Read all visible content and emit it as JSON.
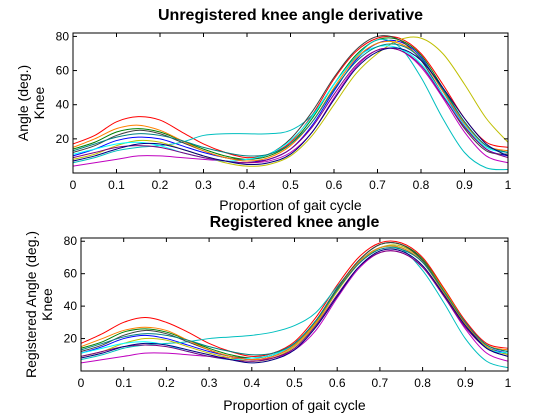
{
  "chart_data": [
    {
      "type": "line",
      "title": "Unregistered knee angle derivative",
      "xlabel": "Proportion of gait cycle",
      "ylabel_lines": [
        "Angle (deg.)",
        "Knee"
      ],
      "xlim": [
        0,
        1
      ],
      "ylim": [
        0,
        82
      ],
      "xticks": [
        0,
        0.1,
        0.2,
        0.3,
        0.4,
        0.5,
        0.6,
        0.7,
        0.8,
        0.9,
        1
      ],
      "xtick_labels": [
        "0",
        "0.1",
        "0.2",
        "0.3",
        "0.4",
        "0.5",
        "0.6",
        "0.7",
        "0.8",
        "0.9",
        "1"
      ],
      "yticks": [
        20,
        40,
        60,
        80
      ],
      "ytick_labels": [
        "20",
        "40",
        "60",
        "80"
      ],
      "grid": false,
      "legend": "none",
      "x": [
        0,
        0.05,
        0.1,
        0.15,
        0.2,
        0.25,
        0.3,
        0.35,
        0.4,
        0.45,
        0.5,
        0.55,
        0.6,
        0.65,
        0.7,
        0.75,
        0.8,
        0.85,
        0.9,
        0.95,
        1
      ],
      "series": [
        {
          "color": "#0000ff",
          "values": [
            10,
            14,
            19,
            21,
            20,
            16,
            12,
            9,
            7,
            8,
            14,
            28,
            48,
            66,
            76,
            77,
            68,
            48,
            28,
            14,
            10
          ]
        },
        {
          "color": "#008000",
          "values": [
            14,
            18,
            24,
            26,
            24,
            19,
            14,
            10,
            8,
            10,
            17,
            32,
            52,
            69,
            78,
            78,
            69,
            50,
            30,
            16,
            12
          ]
        },
        {
          "color": "#ff0000",
          "values": [
            17,
            22,
            30,
            33,
            31,
            24,
            17,
            12,
            9,
            11,
            18,
            34,
            55,
            71,
            79,
            79,
            70,
            52,
            32,
            18,
            15
          ]
        },
        {
          "color": "#00bfbf",
          "values": [
            6,
            9,
            13,
            15,
            16,
            18,
            22,
            23,
            23,
            23,
            25,
            34,
            52,
            68,
            78,
            74,
            56,
            32,
            12,
            3,
            2
          ]
        },
        {
          "color": "#bf00bf",
          "values": [
            4,
            6,
            8,
            10,
            10,
            9,
            8,
            7,
            6,
            7,
            12,
            24,
            44,
            62,
            72,
            72,
            62,
            44,
            24,
            10,
            6
          ]
        },
        {
          "color": "#bfbf00",
          "values": [
            8,
            11,
            16,
            19,
            18,
            14,
            10,
            6,
            4,
            5,
            10,
            22,
            40,
            58,
            70,
            78,
            79,
            70,
            52,
            32,
            18
          ]
        },
        {
          "color": "#404040",
          "values": [
            12,
            16,
            22,
            25,
            23,
            18,
            13,
            9,
            8,
            11,
            20,
            36,
            56,
            72,
            80,
            78,
            66,
            46,
            26,
            13,
            11
          ]
        },
        {
          "color": "#00ffff",
          "values": [
            11,
            14,
            17,
            18,
            16,
            12,
            9,
            7,
            8,
            11,
            19,
            33,
            52,
            67,
            74,
            73,
            64,
            46,
            28,
            15,
            12
          ]
        },
        {
          "color": "#800080",
          "values": [
            9,
            12,
            15,
            16,
            15,
            12,
            9,
            7,
            6,
            8,
            14,
            27,
            46,
            63,
            72,
            72,
            63,
            45,
            27,
            14,
            9
          ]
        },
        {
          "color": "#ff8000",
          "values": [
            15,
            20,
            26,
            28,
            25,
            19,
            13,
            9,
            7,
            9,
            16,
            30,
            50,
            67,
            76,
            76,
            67,
            48,
            29,
            16,
            13
          ]
        },
        {
          "color": "#008080",
          "values": [
            13,
            17,
            21,
            23,
            22,
            19,
            15,
            12,
            10,
            11,
            17,
            30,
            49,
            65,
            74,
            75,
            67,
            49,
            30,
            16,
            12
          ]
        },
        {
          "color": "#000080",
          "values": [
            7,
            10,
            14,
            17,
            17,
            14,
            10,
            7,
            5,
            6,
            11,
            24,
            43,
            61,
            71,
            73,
            66,
            50,
            32,
            17,
            10
          ]
        }
      ]
    },
    {
      "type": "line",
      "title": "Registered knee angle",
      "xlabel": "Proportion of gait cycle",
      "ylabel_lines": [
        "Registered Angle (deg.)",
        "Knee"
      ],
      "xlim": [
        0,
        1
      ],
      "ylim": [
        0,
        82
      ],
      "xticks": [
        0,
        0.1,
        0.2,
        0.3,
        0.4,
        0.5,
        0.6,
        0.7,
        0.8,
        0.9,
        1
      ],
      "xtick_labels": [
        "0",
        "0.1",
        "0.2",
        "0.3",
        "0.4",
        "0.5",
        "0.6",
        "0.7",
        "0.8",
        "0.9",
        "1"
      ],
      "yticks": [
        20,
        40,
        60,
        80
      ],
      "ytick_labels": [
        "20",
        "40",
        "60",
        "80"
      ],
      "grid": false,
      "legend": "none",
      "x": [
        0,
        0.05,
        0.1,
        0.15,
        0.2,
        0.25,
        0.3,
        0.35,
        0.4,
        0.45,
        0.5,
        0.55,
        0.6,
        0.65,
        0.7,
        0.75,
        0.8,
        0.85,
        0.9,
        0.95,
        1
      ],
      "series": [
        {
          "color": "#0000ff",
          "values": [
            11,
            15,
            20,
            22,
            20,
            16,
            12,
            9,
            7,
            9,
            16,
            30,
            50,
            67,
            76,
            76,
            67,
            49,
            29,
            15,
            11
          ]
        },
        {
          "color": "#008000",
          "values": [
            14,
            18,
            24,
            26,
            24,
            19,
            14,
            10,
            8,
            10,
            17,
            31,
            51,
            68,
            78,
            78,
            69,
            50,
            30,
            16,
            12
          ]
        },
        {
          "color": "#ff0000",
          "values": [
            17,
            23,
            30,
            33,
            30,
            24,
            17,
            12,
            9,
            11,
            18,
            33,
            53,
            70,
            79,
            79,
            70,
            51,
            31,
            17,
            14
          ]
        },
        {
          "color": "#00bfbf",
          "values": [
            7,
            10,
            14,
            16,
            17,
            18,
            20,
            21,
            22,
            24,
            28,
            36,
            52,
            67,
            76,
            75,
            62,
            42,
            20,
            6,
            2
          ]
        },
        {
          "color": "#bf00bf",
          "values": [
            5,
            7,
            9,
            11,
            11,
            10,
            9,
            8,
            7,
            8,
            13,
            25,
            45,
            63,
            73,
            73,
            64,
            46,
            26,
            11,
            6
          ]
        },
        {
          "color": "#bfbf00",
          "values": [
            9,
            12,
            17,
            20,
            19,
            15,
            11,
            8,
            6,
            8,
            15,
            29,
            49,
            66,
            76,
            77,
            68,
            50,
            30,
            15,
            10
          ]
        },
        {
          "color": "#404040",
          "values": [
            12,
            16,
            22,
            25,
            23,
            18,
            13,
            9,
            8,
            10,
            17,
            31,
            51,
            68,
            78,
            78,
            68,
            49,
            29,
            14,
            11
          ]
        },
        {
          "color": "#00ffff",
          "values": [
            11,
            14,
            17,
            18,
            16,
            12,
            9,
            7,
            8,
            10,
            17,
            31,
            50,
            67,
            76,
            76,
            67,
            48,
            28,
            14,
            11
          ]
        },
        {
          "color": "#800080",
          "values": [
            9,
            12,
            15,
            16,
            15,
            12,
            9,
            7,
            6,
            8,
            14,
            28,
            47,
            64,
            73,
            73,
            64,
            46,
            27,
            14,
            9
          ]
        },
        {
          "color": "#ff8000",
          "values": [
            15,
            20,
            25,
            27,
            25,
            19,
            13,
            9,
            7,
            9,
            16,
            30,
            50,
            67,
            76,
            76,
            67,
            48,
            29,
            16,
            13
          ]
        },
        {
          "color": "#008080",
          "values": [
            13,
            17,
            21,
            23,
            22,
            19,
            15,
            12,
            10,
            11,
            17,
            31,
            50,
            66,
            75,
            75,
            67,
            49,
            30,
            16,
            12
          ]
        },
        {
          "color": "#000080",
          "values": [
            8,
            11,
            15,
            17,
            16,
            13,
            10,
            7,
            5,
            7,
            13,
            27,
            46,
            64,
            74,
            74,
            65,
            47,
            28,
            14,
            9
          ]
        }
      ]
    }
  ]
}
